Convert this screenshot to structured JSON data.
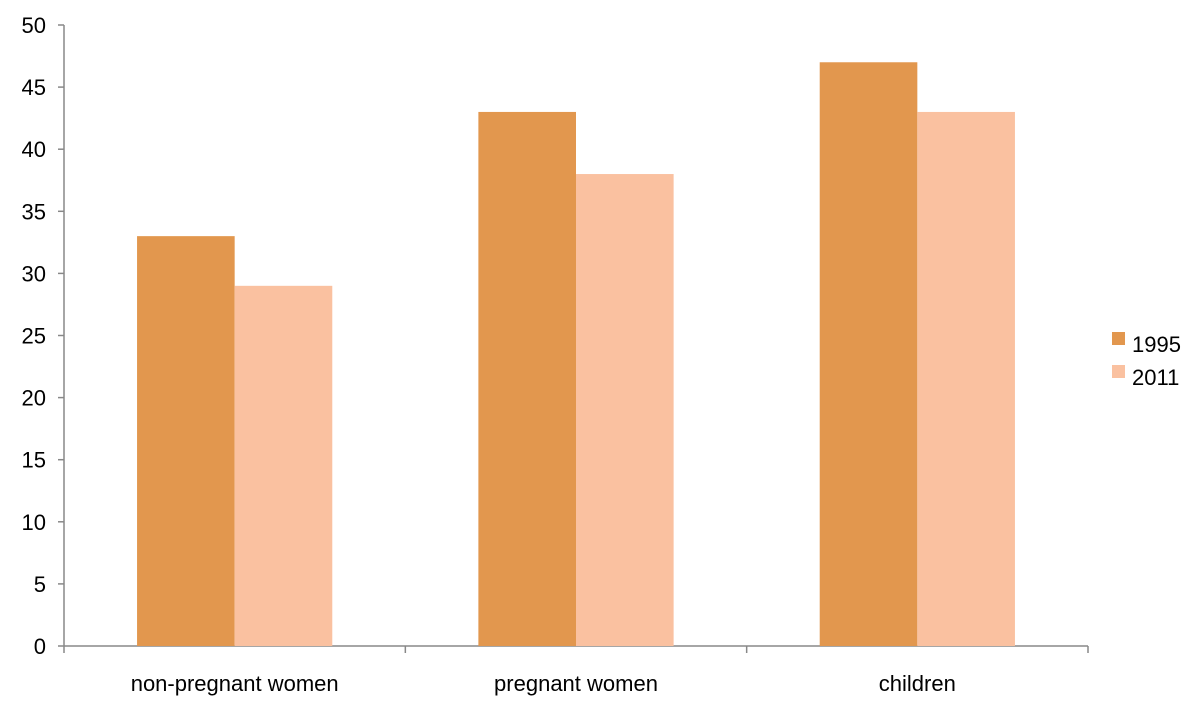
{
  "chart_data": {
    "type": "bar",
    "categories": [
      "non-pregnant women",
      "pregnant women",
      "children"
    ],
    "series": [
      {
        "name": "1995",
        "values": [
          33,
          43,
          47
        ],
        "color": "#E2974E"
      },
      {
        "name": "2011",
        "values": [
          29,
          38,
          43
        ],
        "color": "#FAC1A0"
      }
    ],
    "ylim": [
      0,
      50
    ],
    "yticks": [
      0,
      5,
      10,
      15,
      20,
      25,
      30,
      35,
      40,
      45,
      50
    ],
    "title": "",
    "xlabel": "",
    "ylabel": "",
    "grid": false,
    "legend_position": "right"
  }
}
